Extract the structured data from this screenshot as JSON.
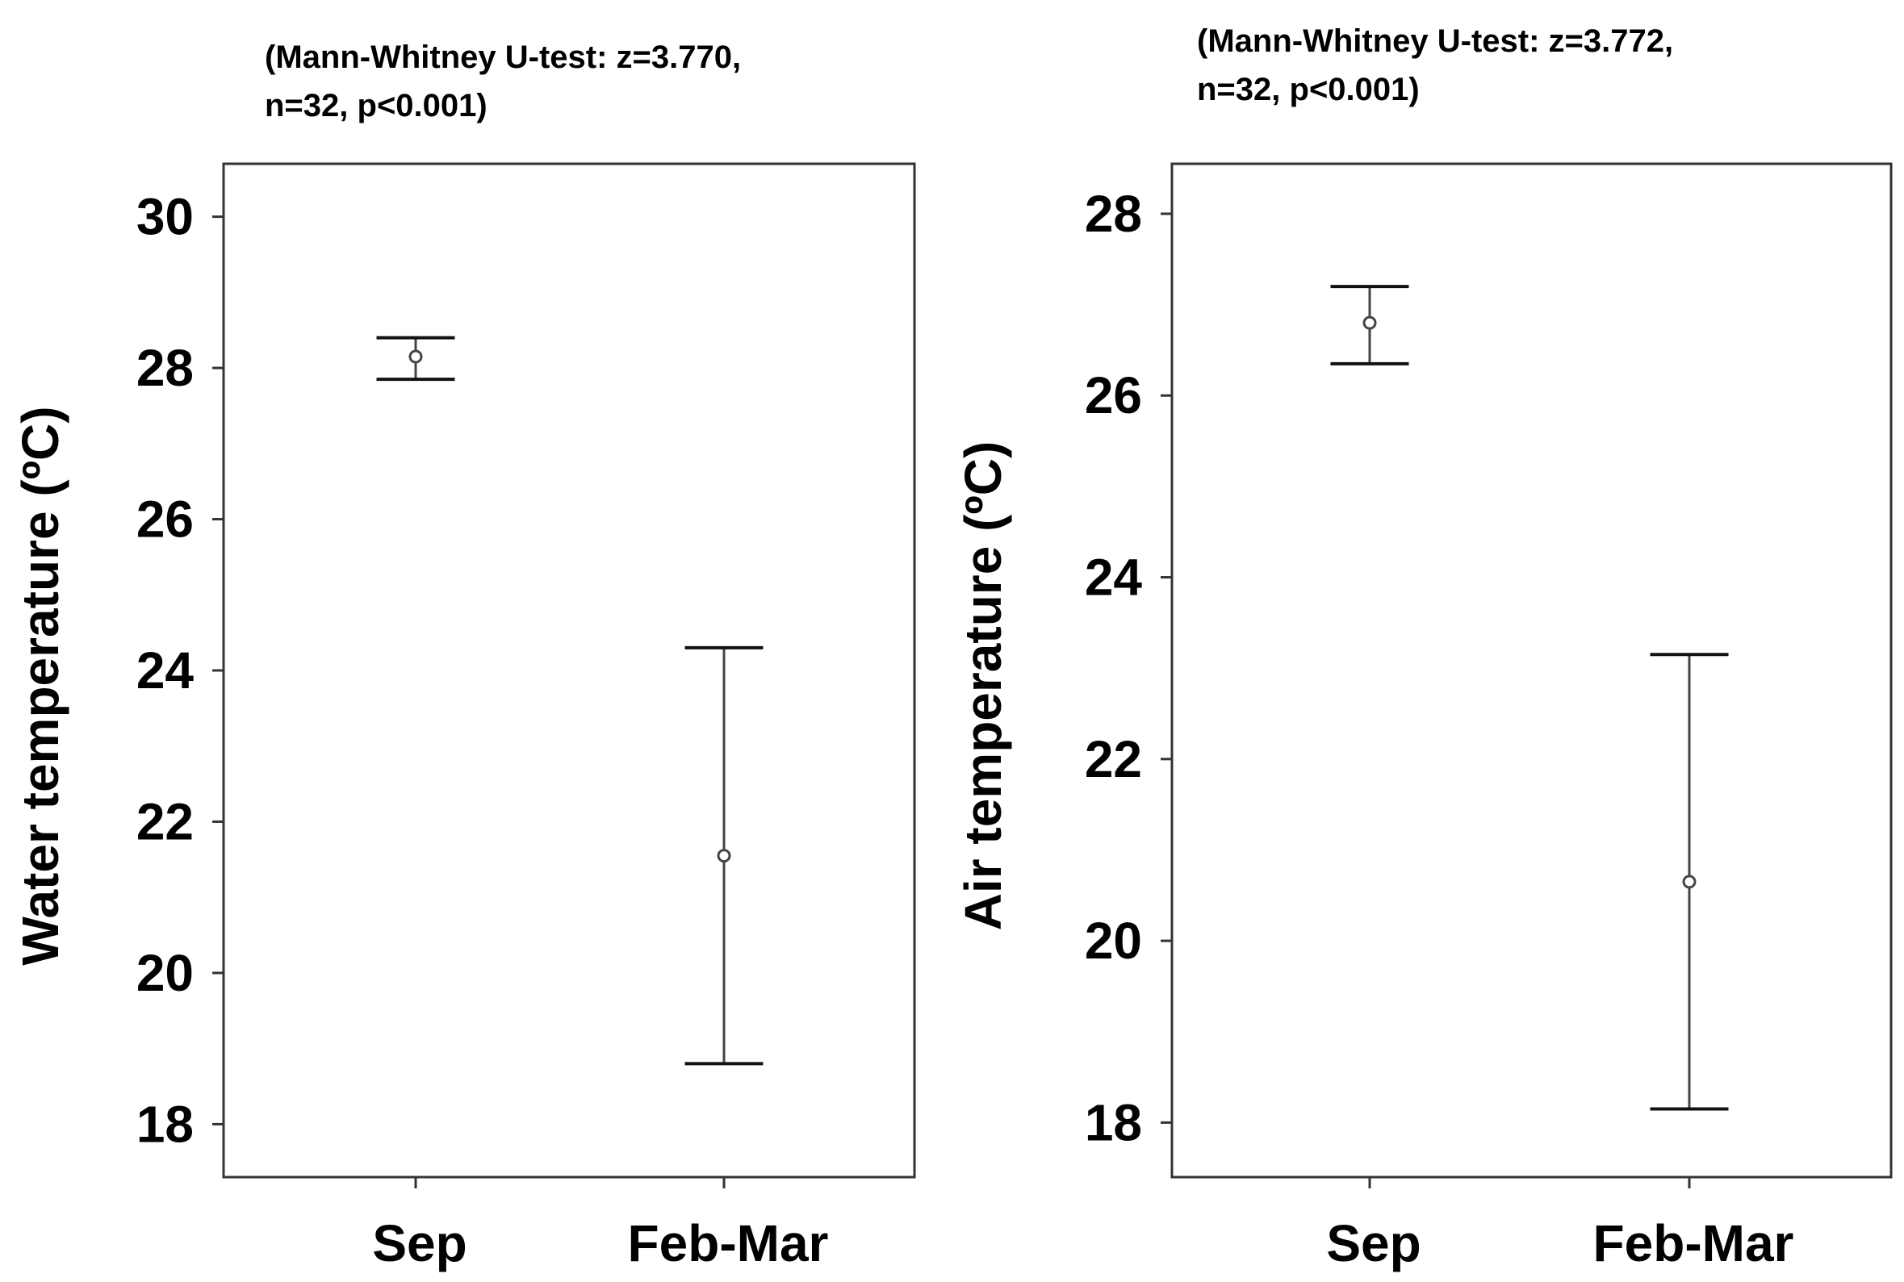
{
  "chart_data": [
    {
      "type": "errorbar",
      "annotation_lines": [
        "(Mann-Whitney U-test: z=3.770,",
        "n=32, p<0.001)"
      ],
      "xlabel": "",
      "ylabel": "Water temperature (ºC)",
      "ylim": [
        17.3,
        30.7
      ],
      "yticks": [
        18,
        20,
        22,
        24,
        26,
        28,
        30
      ],
      "categories": [
        "Sep",
        "Feb-Mar"
      ],
      "points": [
        {
          "category": "Sep",
          "mean": 28.15,
          "lower": 27.85,
          "upper": 28.4
        },
        {
          "category": "Feb-Mar",
          "mean": 21.55,
          "lower": 18.8,
          "upper": 24.3
        }
      ],
      "grid": false,
      "legend": "none"
    },
    {
      "type": "errorbar",
      "annotation_lines": [
        "(Mann-Whitney U-test: z=3.772,",
        "n=32, p<0.001)"
      ],
      "xlabel": "",
      "ylabel": "Air temperature (ºC)",
      "ylim": [
        17.4,
        28.55
      ],
      "yticks": [
        18,
        20,
        22,
        24,
        26,
        28
      ],
      "categories": [
        "Sep",
        "Feb-Mar"
      ],
      "points": [
        {
          "category": "Sep",
          "mean": 26.8,
          "lower": 26.35,
          "upper": 27.2
        },
        {
          "category": "Feb-Mar",
          "mean": 20.65,
          "lower": 18.15,
          "upper": 23.15
        }
      ],
      "grid": false,
      "legend": "none"
    }
  ]
}
